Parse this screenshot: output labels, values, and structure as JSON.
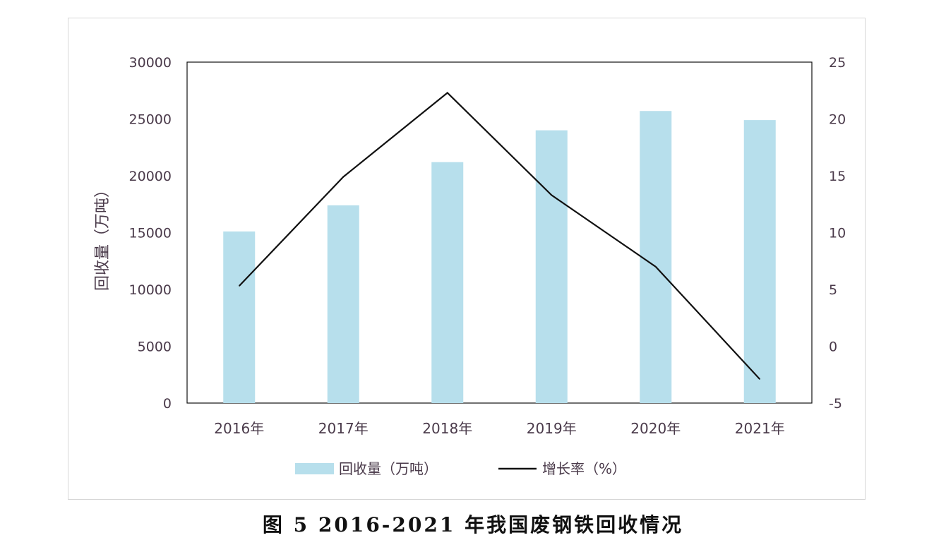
{
  "chart_data": {
    "type": "bar",
    "categories": [
      "2016年",
      "2017年",
      "2018年",
      "2019年",
      "2020年",
      "2021年"
    ],
    "series": [
      {
        "name": "回收量（万吨）",
        "type": "bar",
        "axis": "left",
        "values": [
          15100,
          17400,
          21200,
          24000,
          25700,
          24900
        ]
      },
      {
        "name": "增长率（%）",
        "type": "line",
        "axis": "right",
        "values": [
          5.3,
          14.9,
          22.3,
          13.3,
          7.0,
          -2.9
        ]
      }
    ],
    "ylabel": "回收量（万吨）",
    "ylim": [
      0,
      30000
    ],
    "y_ticks": [
      "0",
      "5000",
      "10000",
      "15000",
      "20000",
      "25000",
      "30000"
    ],
    "y2lim": [
      -5,
      25
    ],
    "y2_ticks": [
      "-5",
      "0",
      "5",
      "10",
      "15",
      "20",
      "25"
    ],
    "grid": false,
    "legend_position": "bottom",
    "colors": {
      "bar": "#b7dfec",
      "line": "#111111",
      "axis_text": "#4a3a4a"
    }
  },
  "caption": "图 5 2016-2021 年我国废钢铁回收情况"
}
